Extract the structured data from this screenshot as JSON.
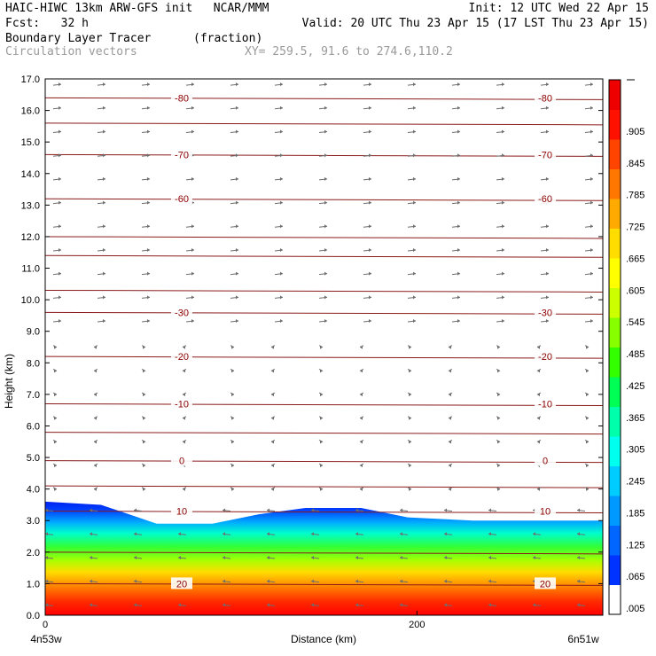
{
  "header": {
    "model": "HAIC-HIWC 13km ARW-GFS init   NCAR/MMM",
    "init": "Init: 12 UTC Wed 22 Apr 15",
    "fcst": "Fcst:   32 h",
    "valid": "Valid: 20 UTC Thu 23 Apr 15 (17 LST Thu 23 Apr 15)",
    "field": "Boundary Layer Tracer",
    "field_units": "(fraction)",
    "vectors": "Circulation vectors",
    "xy": "XY= 259.5, 91.6 to 274.6,110.2"
  },
  "chart_data": {
    "type": "heatmap",
    "title": "Boundary Layer Tracer",
    "ylabel": "Height (km)",
    "xlabel": "Distance (km)",
    "x_start_label": "4n53w",
    "x_end_label": "6n51w",
    "xlim": [
      0,
      300
    ],
    "ylim": [
      0,
      17
    ],
    "x_ticks": [
      0,
      200
    ],
    "y_ticks": [
      "0.0",
      "1.0",
      "2.0",
      "3.0",
      "4.0",
      "5.0",
      "6.0",
      "7.0",
      "8.0",
      "9.0",
      "10.0",
      "11.0",
      "12.0",
      "13.0",
      "14.0",
      "15.0",
      "16.0",
      "17.0"
    ],
    "tracer_top_km": [
      [
        0,
        3.6
      ],
      [
        30,
        3.5
      ],
      [
        60,
        2.9
      ],
      [
        90,
        2.9
      ],
      [
        115,
        3.2
      ],
      [
        140,
        3.4
      ],
      [
        170,
        3.4
      ],
      [
        195,
        3.1
      ],
      [
        230,
        3.0
      ],
      [
        300,
        3.0
      ]
    ],
    "colorbar": {
      "labels": [
        ".905",
        ".845",
        ".785",
        ".725",
        ".665",
        ".605",
        ".545",
        ".485",
        ".425",
        ".365",
        ".305",
        ".245",
        ".185",
        ".125",
        ".065",
        ".005"
      ],
      "colors": [
        "#ffffff",
        "#0033ff",
        "#0066ff",
        "#0099ff",
        "#00ccff",
        "#00ffee",
        "#00ffaa",
        "#00ff55",
        "#33ff00",
        "#88ff00",
        "#ccff00",
        "#ffff00",
        "#ffdd00",
        "#ffaa00",
        "#ff7700",
        "#ff4400",
        "#ff1100",
        "#ee0000"
      ]
    },
    "temperature_contours": [
      {
        "label": "-80",
        "height_km": 16.4
      },
      {
        "label": "-70",
        "height_km": 14.6
      },
      {
        "label": "-60",
        "height_km": 13.2
      },
      {
        "label": "-30",
        "height_km": 9.6
      },
      {
        "label": "-20",
        "height_km": 8.2
      },
      {
        "label": "-10",
        "height_km": 6.7
      },
      {
        "label": "0",
        "height_km": 4.9
      },
      {
        "label": "10",
        "height_km": 3.3
      },
      {
        "label": "20",
        "height_km": 1.0
      }
    ]
  }
}
